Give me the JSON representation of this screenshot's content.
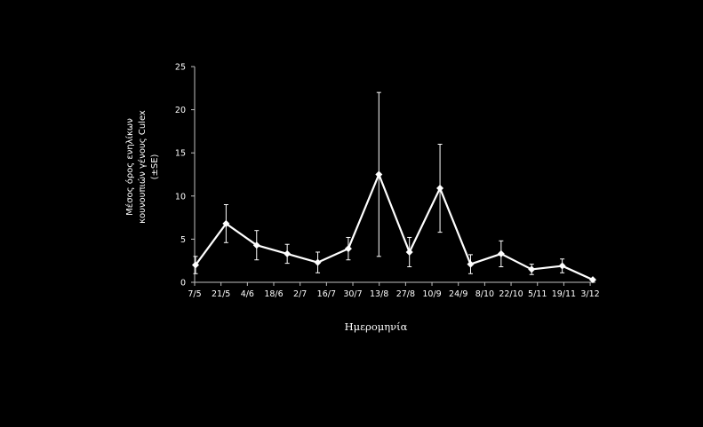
{
  "chart_data": {
    "type": "line",
    "x": [
      "7/5",
      "21/5",
      "4/6",
      "18/6",
      "2/7",
      "16/7",
      "30/7",
      "13/8",
      "27/8",
      "10/9",
      "24/9",
      "8/10",
      "22/10",
      "5/11",
      "19/11",
      "3/12"
    ],
    "yticks": [
      "0",
      "5",
      "10",
      "15",
      "20",
      "25"
    ],
    "ylim": [
      0,
      25
    ],
    "xlabel": "Ημερομηνία",
    "ylabel_lines": [
      "Μέσος όρος ενηλίκων",
      "κουνουπιών γένους Culex",
      "(±SE)"
    ],
    "series": [
      {
        "points": [
          {
            "date": "7/5",
            "y": 2.0,
            "err": 1.0
          },
          {
            "date": "21/5",
            "y": 6.8,
            "err": 2.2
          },
          {
            "date": "4/6",
            "y": 4.3,
            "err": 1.7
          },
          {
            "date": "18/6",
            "y": 3.3,
            "err": 1.1
          },
          {
            "date": "2/7",
            "y": 2.3,
            "err": 1.2
          },
          {
            "date": "16/7",
            "y": 3.9,
            "err": 1.3
          },
          {
            "date": "30/7",
            "y": 12.5,
            "err": 9.5
          },
          {
            "date": "13/8",
            "y": 3.5,
            "err": 1.7
          },
          {
            "date": "27/8",
            "y": 10.9,
            "err": 5.1
          },
          {
            "date": "10/9",
            "y": 2.1,
            "err": 1.1
          },
          {
            "date": "24/9",
            "y": 3.3,
            "err": 1.5
          },
          {
            "date": "8/10",
            "y": 1.5,
            "err": 0.6
          },
          {
            "date": "22/10",
            "y": 1.9,
            "err": 0.8
          },
          {
            "date": "5/11",
            "y": 0.3,
            "err": 0.1
          }
        ]
      }
    ],
    "colors": {
      "background": "#000000",
      "foreground": "#ffffff"
    },
    "grid": false,
    "legend": "none"
  }
}
